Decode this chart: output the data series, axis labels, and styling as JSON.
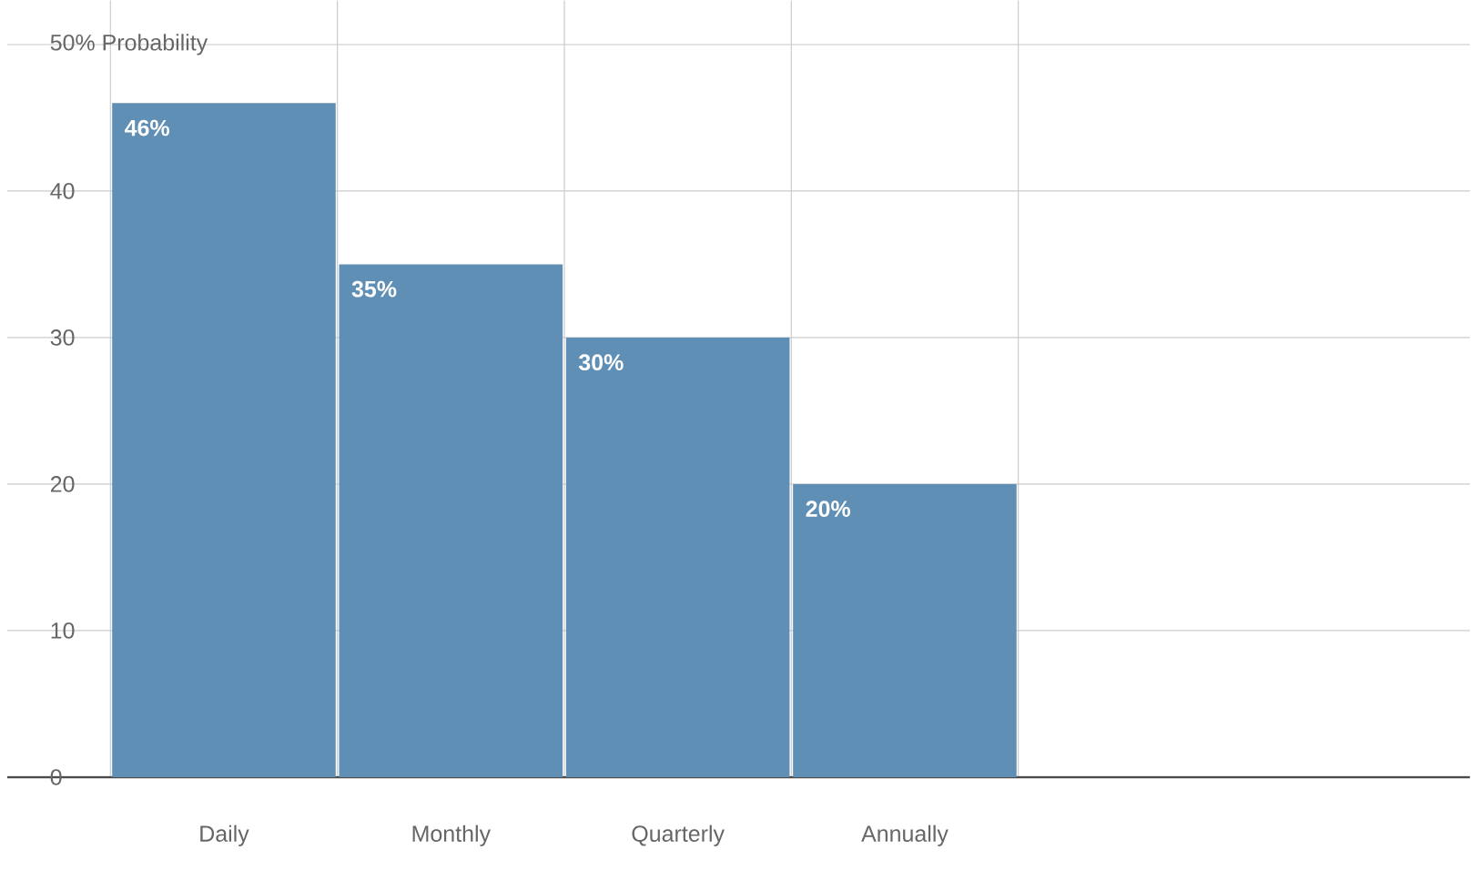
{
  "chart_data": {
    "type": "bar",
    "categories": [
      "Daily",
      "Monthly",
      "Quarterly",
      "Annually"
    ],
    "values": [
      46,
      35,
      30,
      20
    ],
    "value_labels": [
      "46%",
      "35%",
      "30%",
      "20%"
    ],
    "color": "#5f8fb4",
    "ylim": [
      0,
      53
    ],
    "yticks": [
      0,
      10,
      20,
      30,
      40,
      {
        "value": 50,
        "label": "50% Probability"
      }
    ],
    "grid": true
  }
}
